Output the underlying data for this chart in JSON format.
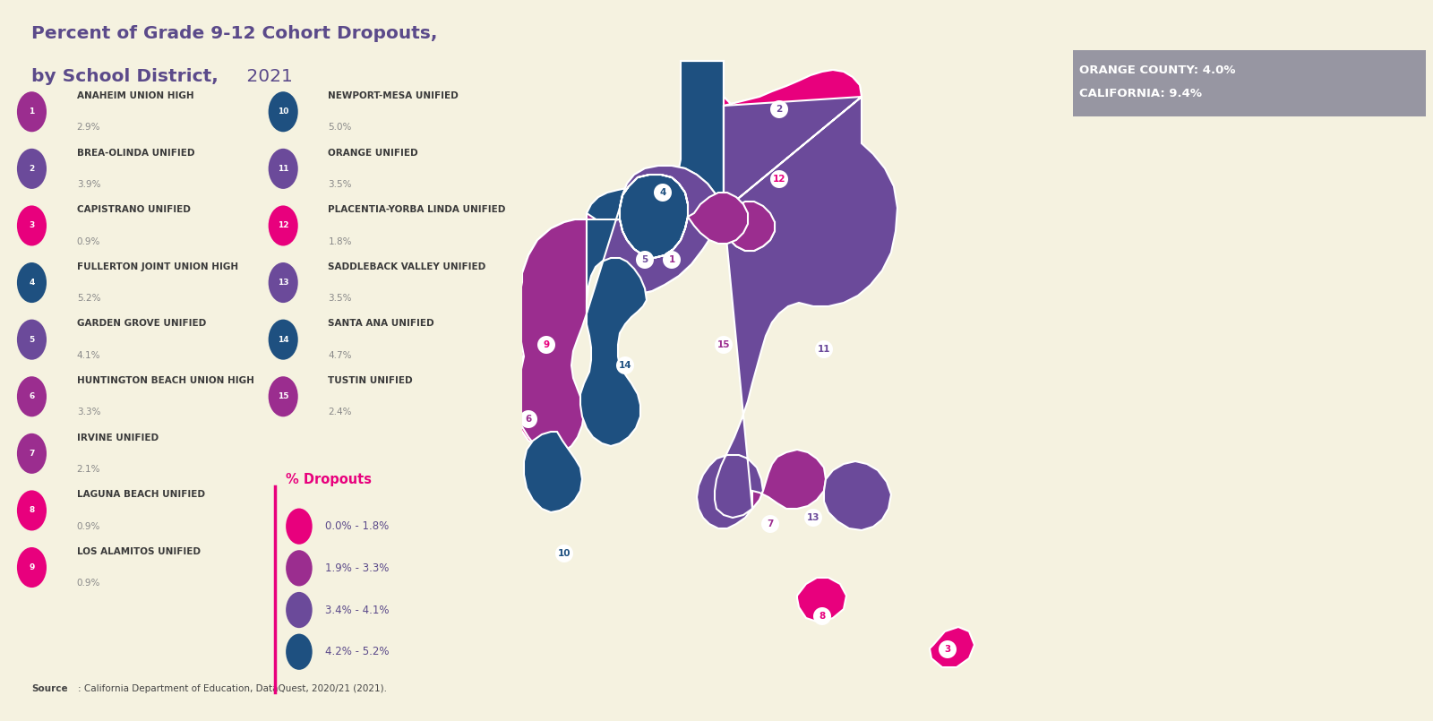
{
  "title_line1": "Percent of Grade 9-12 Cohort Dropouts,",
  "title_line2": "by School District,",
  "title_year": " 2021",
  "background_color": "#f5f2e0",
  "title_color": "#5b4a8a",
  "label_name_color": "#3a3a3a",
  "label_pct_color": "#888888",
  "source_bold": "Source",
  "source_plain": ": California Department of Education, DataQuest, 2020/21 (2021).",
  "county_line1": "ORANGE COUNTY: 4.0%",
  "county_line2": "CALIFORNIA: 9.4%",
  "legend_title": "% Dropouts",
  "legend_title_color": "#e8007d",
  "legend_text_color": "#5b4a8a",
  "legend_line_color": "#e8007d",
  "legend_items": [
    {
      "label": "0.0% - 1.8%",
      "color": "#e8007d"
    },
    {
      "label": "1.9% - 3.3%",
      "color": "#9b2d8f"
    },
    {
      "label": "3.4% - 4.1%",
      "color": "#6b4a9a"
    },
    {
      "label": "4.2% - 5.2%",
      "color": "#1e5080"
    }
  ],
  "districts": [
    {
      "num": 1,
      "name": "ANAHEIM UNION HIGH",
      "pct": "2.9%",
      "color": "#9b2d8f"
    },
    {
      "num": 2,
      "name": "BREA-OLINDA UNIFIED",
      "pct": "3.9%",
      "color": "#6b4a9a"
    },
    {
      "num": 3,
      "name": "CAPISTRANO UNIFIED",
      "pct": "0.9%",
      "color": "#e8007d"
    },
    {
      "num": 4,
      "name": "FULLERTON JOINT UNION HIGH",
      "pct": "5.2%",
      "color": "#1e5080"
    },
    {
      "num": 5,
      "name": "GARDEN GROVE UNIFIED",
      "pct": "4.1%",
      "color": "#6b4a9a"
    },
    {
      "num": 6,
      "name": "HUNTINGTON BEACH UNION HIGH",
      "pct": "3.3%",
      "color": "#9b2d8f"
    },
    {
      "num": 7,
      "name": "IRVINE UNIFIED",
      "pct": "2.1%",
      "color": "#9b2d8f"
    },
    {
      "num": 8,
      "name": "LAGUNA BEACH UNIFIED",
      "pct": "0.9%",
      "color": "#e8007d"
    },
    {
      "num": 9,
      "name": "LOS ALAMITOS UNIFIED",
      "pct": "0.9%",
      "color": "#e8007d"
    },
    {
      "num": 10,
      "name": "NEWPORT-MESA UNIFIED",
      "pct": "5.0%",
      "color": "#1e5080"
    },
    {
      "num": 11,
      "name": "ORANGE UNIFIED",
      "pct": "3.5%",
      "color": "#6b4a9a"
    },
    {
      "num": 12,
      "name": "PLACENTIA-YORBA LINDA UNIFIED",
      "pct": "1.8%",
      "color": "#e8007d"
    },
    {
      "num": 13,
      "name": "SADDLEBACK VALLEY UNIFIED",
      "pct": "3.5%",
      "color": "#6b4a9a"
    },
    {
      "num": 14,
      "name": "SANTA ANA UNIFIED",
      "pct": "4.7%",
      "color": "#1e5080"
    },
    {
      "num": 15,
      "name": "TUSTIN UNIFIED",
      "pct": "2.4%",
      "color": "#9b2d8f"
    }
  ],
  "bottom_bar_color": "#e8007d",
  "county_box_color": "#8a8a9a"
}
